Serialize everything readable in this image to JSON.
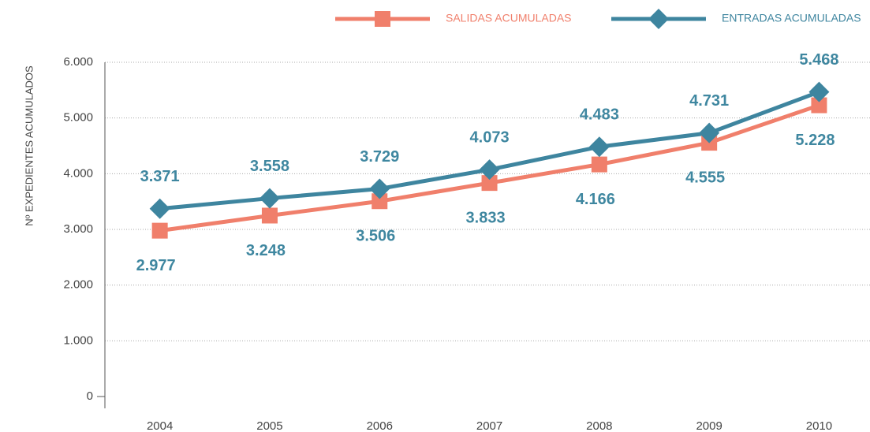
{
  "chart_data": {
    "type": "line",
    "y_label": "Nº EXPEDIENTES ACUMULADOS",
    "categories": [
      "2004",
      "2005",
      "2006",
      "2007",
      "2008",
      "2009",
      "2010"
    ],
    "series": [
      {
        "name": "SALIDAS ACUMULADAS",
        "color": "#f07f6b",
        "marker": "square",
        "values": [
          2977,
          3248,
          3506,
          3833,
          4166,
          4555,
          5228
        ],
        "value_labels": [
          "2.977",
          "3.248",
          "3.506",
          "3.833",
          "4.166",
          "4.555",
          "5.228"
        ],
        "label_position": "below"
      },
      {
        "name": "ENTRADAS ACUMULADAS",
        "color": "#3e859f",
        "marker": "diamond",
        "values": [
          3371,
          3558,
          3729,
          4073,
          4483,
          4731,
          5468
        ],
        "value_labels": [
          "3.371",
          "3.558",
          "3.729",
          "4.073",
          "4.483",
          "4.731",
          "5.468"
        ],
        "label_position": "above"
      }
    ],
    "value_label_color": "#3f87a0",
    "ylim": [
      0,
      6000
    ],
    "yticks": [
      0,
      {
        "value": 1000,
        "label": "1.000"
      },
      {
        "value": 2000,
        "label": "2.000"
      },
      {
        "value": 3000,
        "label": "3.000"
      },
      {
        "value": 4000,
        "label": "4.000"
      },
      {
        "value": 5000,
        "label": "5.000"
      },
      {
        "value": 6000,
        "label": "6.000"
      }
    ],
    "grid": true,
    "legend": "top-right"
  }
}
